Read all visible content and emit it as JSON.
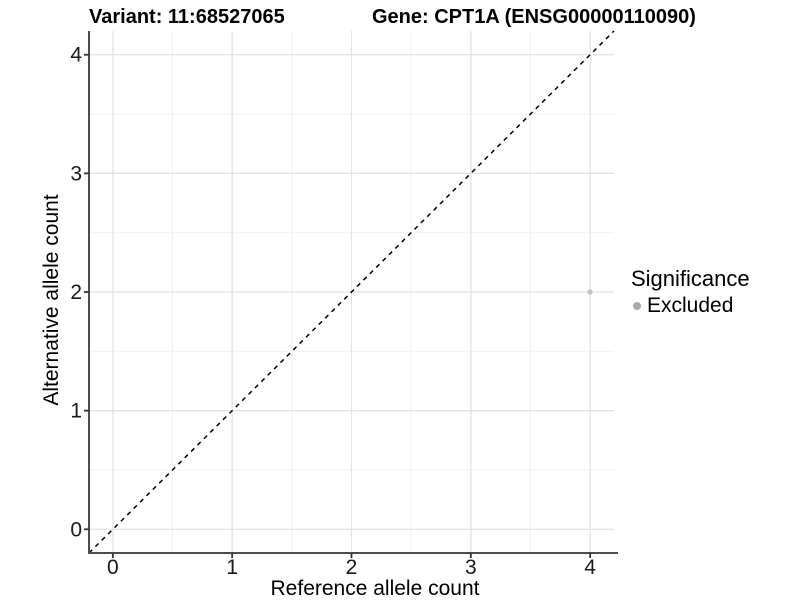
{
  "chart_data": {
    "type": "scatter",
    "titles": {
      "left": "Variant: 11:68527065",
      "right": "Gene: CPT1A (ENSG00000110090)"
    },
    "xlabel": "Reference allele count",
    "ylabel": "Alternative allele count",
    "xlim": [
      -0.2,
      4.2
    ],
    "ylim": [
      -0.2,
      4.2
    ],
    "xticks": [
      0,
      1,
      2,
      3,
      4
    ],
    "yticks": [
      0,
      1,
      2,
      3,
      4
    ],
    "grid": {
      "major": [
        0,
        1,
        2,
        3,
        4
      ],
      "minor": [
        0.5,
        1.5,
        2.5,
        3.5
      ]
    },
    "points": [
      {
        "x": 4,
        "y": 2,
        "series": "Excluded"
      }
    ],
    "identity_line": {
      "from": [
        -0.2,
        -0.2
      ],
      "to": [
        4.2,
        4.2
      ],
      "style": "dashed",
      "color": "#000000"
    },
    "legend": {
      "title": "Significance",
      "position": "right",
      "entries": [
        {
          "label": "Excluded",
          "color": "#a9a9a9"
        }
      ]
    },
    "colors": {
      "point": "#c3c3c3",
      "grid_major": "#e2e2e2",
      "grid_minor": "#f0f0f0",
      "axis_line": "#4d4d4d",
      "tick": "#333333",
      "text": "#000000"
    }
  }
}
